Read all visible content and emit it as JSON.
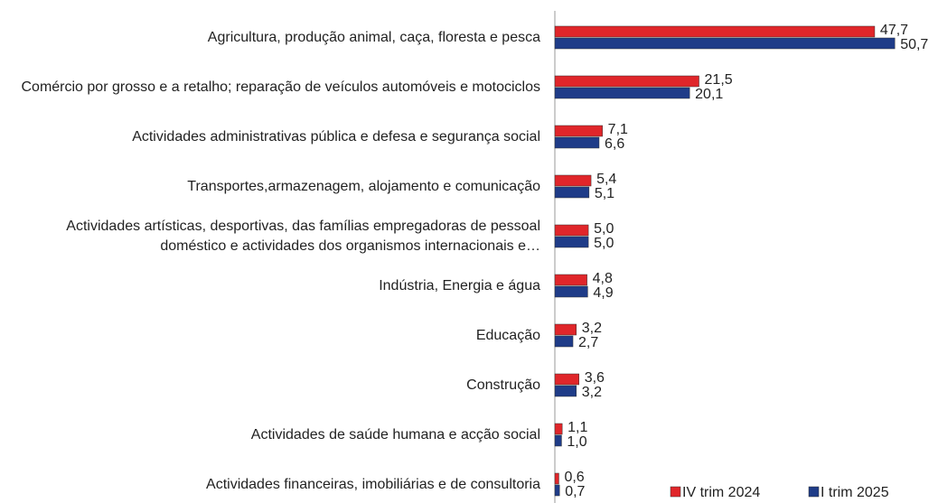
{
  "chart_data": {
    "type": "bar",
    "orientation": "horizontal",
    "categories": [
      "Agricultura, produção animal, caça, floresta e pesca",
      "Comércio por grosso e a retalho; reparação de veículos automóveis e  motociclos",
      "Actividades administrativas pública e defesa e segurança social",
      "Transportes,armazenagem, alojamento e comunicação",
      "Actividades artísticas, desportivas, das famílias empregadoras de pessoal doméstico e actividades dos organismos internacionais e…",
      "Indústria, Energia e água",
      "Educação",
      "Construção",
      "Actividades de saúde humana e acção social",
      "Actividades financeiras, imobiliárias e de consultoria"
    ],
    "series": [
      {
        "name": "IV trim 2024",
        "color": "#e0262a",
        "values": [
          47.7,
          21.5,
          7.1,
          5.4,
          5.0,
          4.8,
          3.2,
          3.6,
          1.1,
          0.6
        ],
        "value_labels": [
          "47,7",
          "21,5",
          "7,1",
          "5,4",
          "5,0",
          "4,8",
          "3,2",
          "3,6",
          "1,1",
          "0,6"
        ]
      },
      {
        "name": "I trim 2025",
        "color": "#1f3c88",
        "values": [
          50.7,
          20.1,
          6.6,
          5.1,
          5.0,
          4.9,
          2.7,
          3.2,
          1.0,
          0.7
        ],
        "value_labels": [
          "50,7",
          "20,1",
          "6,6",
          "5,1",
          "5,0",
          "4,9",
          "2,7",
          "3,2",
          "1,0",
          "0,7"
        ]
      }
    ],
    "xlim": [
      0,
      55
    ],
    "legend": "bottom-right"
  }
}
